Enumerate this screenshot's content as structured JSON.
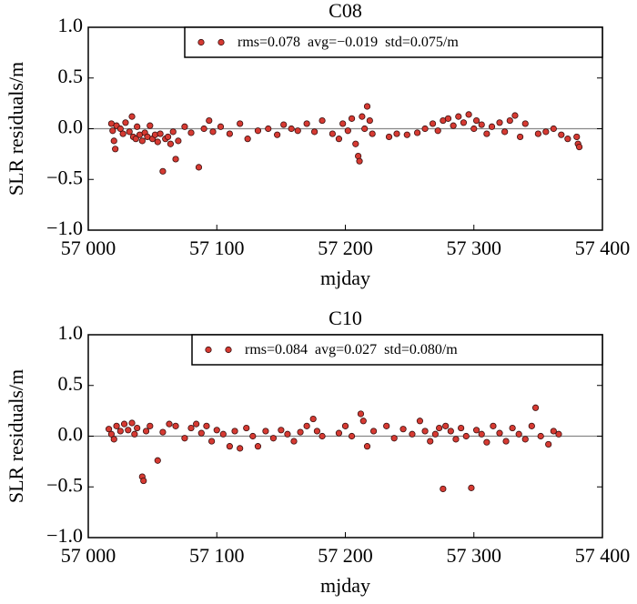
{
  "chart_data": [
    {
      "type": "scatter",
      "title": "C08",
      "xlabel": "mjday",
      "ylabel": "SLR residuals/m",
      "xlim": [
        57000,
        57400
      ],
      "ylim": [
        -1,
        1
      ],
      "xticks": [
        {
          "value": 57000,
          "label": "57 000"
        },
        {
          "value": 57100,
          "label": "57 100"
        },
        {
          "value": 57200,
          "label": "57 200"
        },
        {
          "value": 57300,
          "label": "57 300"
        },
        {
          "value": 57400,
          "label": "57 400"
        }
      ],
      "yticks": [
        {
          "value": -1,
          "label": "−1.0"
        },
        {
          "value": -0.5,
          "label": "−0.5"
        },
        {
          "value": 0,
          "label": "0.0"
        },
        0.5,
        {
          "value": 1,
          "label": "1.0"
        }
      ],
      "legend": "upper right",
      "series": [
        {
          "name": "rms=0.078  avg=−0.019  std=0.075/m",
          "color": "#d63a32",
          "x": [
            57018,
            57019,
            57020,
            57021,
            57022,
            57025,
            57027,
            57029,
            57032,
            57034,
            57035,
            57037,
            57038,
            57040,
            57042,
            57044,
            57046,
            57048,
            57050,
            57052,
            57054,
            57056,
            57058,
            57060,
            57062,
            57064,
            57066,
            57068,
            57070,
            57075,
            57080,
            57086,
            57090,
            57094,
            57097,
            57103,
            57110,
            57118,
            57124,
            57132,
            57140,
            57147,
            57152,
            57158,
            57163,
            57170,
            57176,
            57182,
            57190,
            57195,
            57198,
            57202,
            57205,
            57208,
            57210,
            57211,
            57213,
            57215,
            57217,
            57219,
            57221,
            57234,
            57240,
            57248,
            57256,
            57262,
            57268,
            57272,
            57276,
            57280,
            57284,
            57288,
            57292,
            57296,
            57300,
            57302,
            57306,
            57310,
            57314,
            57320,
            57324,
            57328,
            57332,
            57336,
            57340,
            57350,
            57356,
            57362,
            57368,
            57373,
            57380,
            57381,
            57382
          ],
          "values": [
            0.05,
            -0.02,
            -0.12,
            -0.2,
            0.03,
            0.0,
            -0.05,
            0.06,
            -0.03,
            0.12,
            -0.08,
            -0.1,
            0.02,
            -0.06,
            -0.12,
            -0.04,
            -0.08,
            0.03,
            -0.1,
            -0.06,
            -0.13,
            -0.05,
            -0.42,
            -0.1,
            -0.08,
            -0.15,
            -0.03,
            -0.3,
            -0.12,
            0.02,
            -0.04,
            -0.38,
            0.0,
            0.08,
            -0.03,
            0.02,
            -0.05,
            0.05,
            -0.1,
            -0.02,
            0.0,
            -0.06,
            0.04,
            0.0,
            -0.02,
            0.05,
            -0.03,
            0.08,
            -0.05,
            -0.1,
            0.05,
            -0.02,
            0.1,
            -0.15,
            -0.27,
            -0.32,
            0.12,
            0.0,
            0.22,
            0.08,
            -0.05,
            -0.08,
            -0.05,
            -0.06,
            -0.04,
            0.0,
            0.05,
            -0.02,
            0.08,
            0.1,
            0.03,
            0.12,
            0.06,
            0.14,
            0.0,
            0.08,
            0.04,
            -0.05,
            0.02,
            0.06,
            -0.03,
            0.08,
            0.13,
            -0.08,
            0.05,
            -0.05,
            -0.03,
            0.0,
            -0.06,
            -0.1,
            -0.08,
            -0.15,
            -0.18
          ]
        }
      ]
    },
    {
      "type": "scatter",
      "title": "C10",
      "xlabel": "mjday",
      "ylabel": "SLR residuals/m",
      "xlim": [
        57000,
        57400
      ],
      "ylim": [
        -1,
        1
      ],
      "xticks": [
        {
          "value": 57000,
          "label": "57 000"
        },
        {
          "value": 57100,
          "label": "57 100"
        },
        {
          "value": 57200,
          "label": "57 200"
        },
        {
          "value": 57300,
          "label": "57 300"
        },
        {
          "value": 57400,
          "label": "57 400"
        }
      ],
      "yticks": [
        {
          "value": -1,
          "label": "−1.0"
        },
        {
          "value": -0.5,
          "label": "−0.5"
        },
        {
          "value": 0,
          "label": "0.0"
        },
        0.5,
        {
          "value": 1,
          "label": "1.0"
        }
      ],
      "legend": "upper right",
      "series": [
        {
          "name": "rms=0.084  avg=0.027  std=0.080/m",
          "color": "#d63a32",
          "x": [
            57016,
            57018,
            57020,
            57022,
            57025,
            57028,
            57031,
            57034,
            57036,
            57038,
            57042,
            57043,
            57045,
            57048,
            57054,
            57058,
            57063,
            57068,
            57075,
            57080,
            57084,
            57088,
            57092,
            57096,
            57100,
            57105,
            57110,
            57114,
            57118,
            57123,
            57128,
            57132,
            57138,
            57144,
            57150,
            57155,
            57160,
            57165,
            57170,
            57175,
            57178,
            57182,
            57195,
            57200,
            57205,
            57212,
            57214,
            57217,
            57222,
            57232,
            57238,
            57245,
            57252,
            57258,
            57262,
            57266,
            57270,
            57273,
            57276,
            57278,
            57282,
            57286,
            57290,
            57294,
            57298,
            57302,
            57306,
            57310,
            57315,
            57320,
            57325,
            57330,
            57335,
            57340,
            57345,
            57348,
            57352,
            57358,
            57362,
            57366
          ],
          "values": [
            0.07,
            0.02,
            -0.03,
            0.1,
            0.05,
            0.12,
            0.06,
            0.13,
            0.02,
            0.08,
            -0.4,
            -0.44,
            0.05,
            0.1,
            -0.24,
            0.04,
            0.12,
            0.1,
            -0.02,
            0.08,
            0.12,
            0.03,
            0.1,
            -0.05,
            0.06,
            0.02,
            -0.1,
            0.05,
            -0.12,
            0.08,
            0.0,
            -0.1,
            0.05,
            -0.02,
            0.06,
            0.02,
            -0.05,
            0.04,
            0.1,
            0.17,
            0.05,
            0.0,
            0.03,
            0.1,
            0.0,
            0.22,
            0.15,
            -0.1,
            0.05,
            0.1,
            -0.02,
            0.07,
            0.02,
            0.15,
            0.05,
            -0.05,
            0.02,
            0.08,
            -0.52,
            0.1,
            0.05,
            -0.03,
            0.08,
            0.0,
            -0.51,
            0.06,
            0.02,
            -0.06,
            0.1,
            0.03,
            -0.05,
            0.08,
            0.02,
            -0.03,
            0.1,
            0.28,
            0.0,
            -0.08,
            0.05,
            0.02
          ]
        }
      ]
    }
  ]
}
